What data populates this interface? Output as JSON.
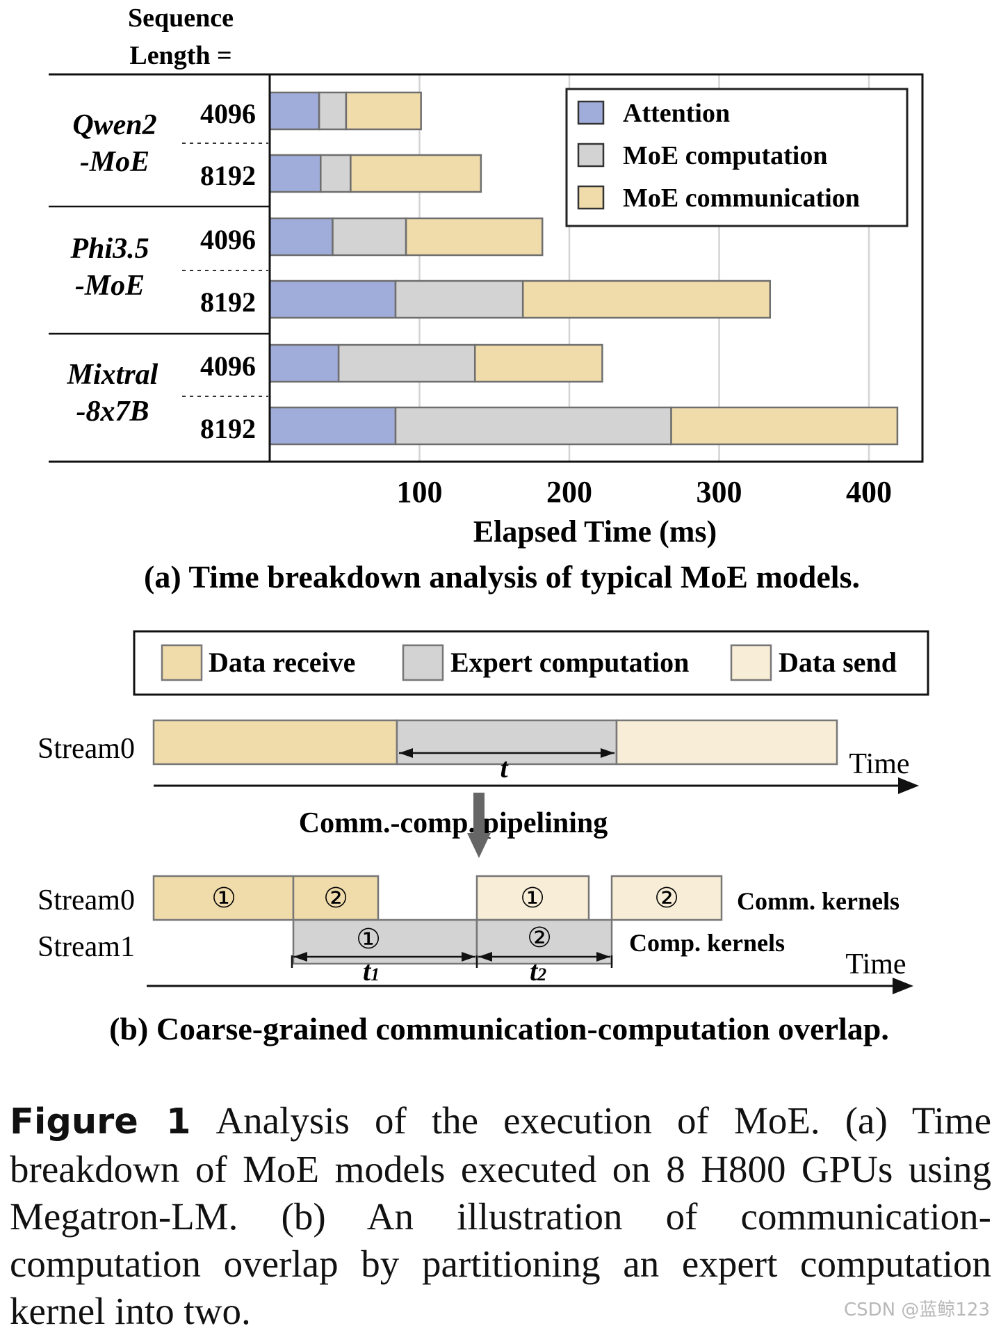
{
  "chart_data": {
    "type": "bar",
    "orientation": "horizontal",
    "stacked": true,
    "left_header": "Sequence Length =",
    "xlabel": "Elapsed Time (ms)",
    "xticks": [
      "100",
      "200",
      "300",
      "400"
    ],
    "xlim": [
      0,
      435
    ],
    "grid": true,
    "legend_position": "top-right",
    "series_names": [
      "Attention",
      "MoE computation",
      "MoE communication"
    ],
    "series_colors": [
      "#a0acd9",
      "#d3d3d3",
      "#f0dcab"
    ],
    "groups": [
      {
        "model_line1": "Qwen2",
        "model_line2": "-MoE",
        "rows": [
          {
            "length": "4096",
            "values": [
              33,
              18,
              50
            ]
          },
          {
            "length": "8192",
            "values": [
              34,
              20,
              87
            ]
          }
        ]
      },
      {
        "model_line1": "Phi3.5",
        "model_line2": "-MoE",
        "rows": [
          {
            "length": "4096",
            "values": [
              42,
              49,
              91
            ]
          },
          {
            "length": "8192",
            "values": [
              84,
              85,
              165
            ]
          }
        ]
      },
      {
        "model_line1": "Mixtral",
        "model_line2": "-8x7B",
        "rows": [
          {
            "length": "4096",
            "values": [
              46,
              91,
              85
            ]
          },
          {
            "length": "8192",
            "values": [
              84,
              184,
              151
            ]
          }
        ]
      }
    ],
    "title": "(a) Time breakdown analysis of typical MoE models."
  },
  "diagram_b": {
    "legend": [
      "Data receive",
      "Expert computation",
      "Data send"
    ],
    "colors": {
      "receive": "#f0dcab",
      "compute": "#d3d3d3",
      "send": "#f8edd6",
      "arrow": "#666666"
    },
    "top_stream_label": "Stream0",
    "time_label": "Time",
    "t_label": "t",
    "pipeline_label": "Comm.-comp. pipelining",
    "stream0_label": "Stream0",
    "stream1_label": "Stream1",
    "chunk1": "①",
    "chunk2": "②",
    "comm_kernels": "Comm. kernels",
    "comp_kernels": "Comp. kernels",
    "t1_label": "t",
    "t1_sub": "1",
    "t2_label": "t",
    "t2_sub": "2",
    "title": "(b) Coarse-grained communication-computation overlap."
  },
  "caption": {
    "label": "Figure 1",
    "text": "Analysis of the execution of MoE. (a) Time breakdown of MoE models executed on 8 H800 GPUs using Megatron-LM. (b) An illustration of communication-computation overlap by partitioning an expert computation kernel into two."
  },
  "watermark": "CSDN @蓝鲸123"
}
